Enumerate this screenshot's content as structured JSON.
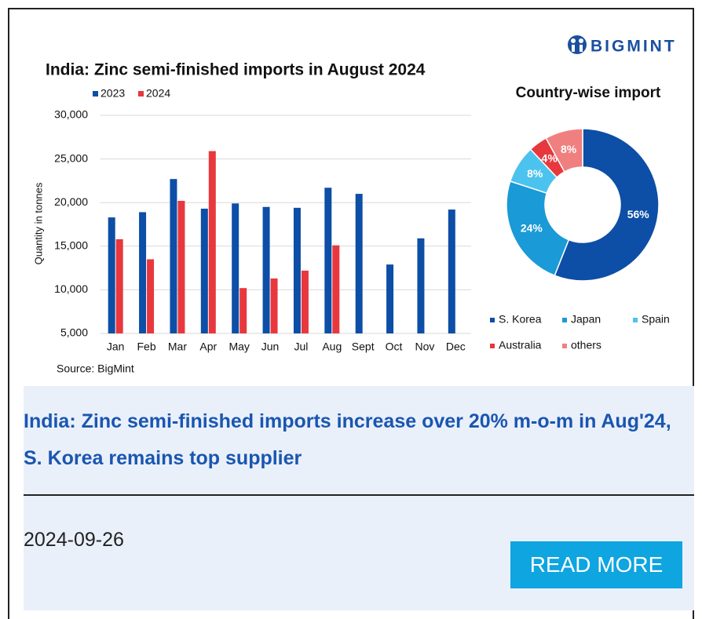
{
  "brand": "BIGMINT",
  "chart_data": [
    {
      "type": "bar",
      "title": "India: Zinc semi-finished imports in August 2024",
      "y_label": "Quantity in tonnes",
      "source": "Source: BigMint",
      "categories": [
        "Jan",
        "Feb",
        "Mar",
        "Apr",
        "May",
        "Jun",
        "Jul",
        "Aug",
        "Sept",
        "Oct",
        "Nov",
        "Dec"
      ],
      "series": [
        {
          "name": "2023",
          "color": "#0d4ea6",
          "values": [
            18300,
            18900,
            22700,
            19300,
            19900,
            19500,
            19400,
            21700,
            21000,
            12900,
            15900,
            19200
          ]
        },
        {
          "name": "2024",
          "color": "#e8383d",
          "values": [
            15800,
            13500,
            20200,
            25900,
            10200,
            11300,
            12200,
            15100,
            null,
            null,
            null,
            null
          ]
        }
      ],
      "ylim": [
        5000,
        30000
      ],
      "yticks": [
        {
          "value": 5000,
          "label": "5,000"
        },
        {
          "value": 10000,
          "label": "10,000"
        },
        {
          "value": 15000,
          "label": "15,000"
        },
        {
          "value": 20000,
          "label": "20,000"
        },
        {
          "value": 25000,
          "label": "25,000"
        },
        {
          "value": 30000,
          "label": "30,000"
        }
      ],
      "grid": true,
      "legend": "top-left"
    },
    {
      "type": "pie",
      "title": "Country-wise import",
      "donut": true,
      "categories": [
        "S. Korea",
        "Japan",
        "Spain",
        "Australia",
        "others"
      ],
      "values": [
        56,
        24,
        8,
        4,
        8
      ],
      "value_labels": [
        "56%",
        "24%",
        "8%",
        "4%",
        "8%"
      ],
      "colors": [
        "#0d4ea6",
        "#1a9ad6",
        "#4cc3ee",
        "#e8383d",
        "#f08080"
      ],
      "legend": "bottom"
    }
  ],
  "article": {
    "headline": "India: Zinc semi-finished imports increase over 20% m-o-m in Aug'24, S. Korea remains top supplier",
    "date": "2024-09-26",
    "button": "READ MORE"
  }
}
